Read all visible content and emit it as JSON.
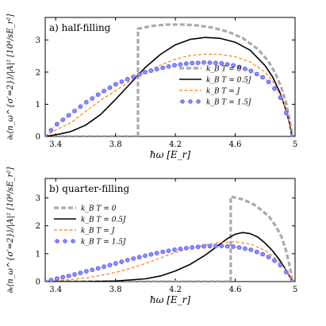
{
  "figure": {
    "ylabel": "∂ₜ⟨n_ω^{σ′=2}⟩/|A|² [10⁴/sE_r²]"
  },
  "chart_data": [
    {
      "type": "line",
      "panel_label": "a) half-filling",
      "xlabel": "ħω [E_r]",
      "ylabel": "∂ₜ⟨n_ω^{σ′=2}⟩/|A|² [10⁴/sE_r²]",
      "xlim": [
        3.33,
        5.0
      ],
      "ylim": [
        0,
        3.7
      ],
      "x_ticks": [
        "3.4",
        "3.8",
        "4.2",
        "4.6",
        "5"
      ],
      "x_tick_values": [
        3.4,
        3.8,
        4.2,
        4.6,
        5.0
      ],
      "y_ticks": [
        "0",
        "1",
        "2",
        "3"
      ],
      "y_tick_values": [
        0,
        1,
        2,
        3
      ],
      "legend_position": "lower-right",
      "series": [
        {
          "name": "k_B T = 0",
          "style": "gray-dashed",
          "color": "#aaaaaa",
          "x": [
            3.33,
            3.95,
            3.95,
            3.95,
            4.05,
            4.15,
            4.25,
            4.35,
            4.45,
            4.55,
            4.65,
            4.75,
            4.82,
            4.87,
            4.91,
            4.94,
            4.96,
            4.975,
            4.98
          ],
          "y": [
            0.0,
            0.0,
            0.0,
            3.35,
            3.44,
            3.48,
            3.48,
            3.45,
            3.38,
            3.26,
            3.06,
            2.72,
            2.35,
            1.95,
            1.5,
            1.05,
            0.6,
            0.2,
            0.0
          ]
        },
        {
          "name": "k_B T = 0.5J",
          "style": "solid",
          "color": "#000000",
          "x": [
            3.33,
            3.4,
            3.5,
            3.6,
            3.7,
            3.8,
            3.9,
            4.0,
            4.1,
            4.2,
            4.3,
            4.4,
            4.5,
            4.6,
            4.7,
            4.8,
            4.85,
            4.9,
            4.93,
            4.96,
            4.98
          ],
          "y": [
            0.0,
            0.05,
            0.15,
            0.35,
            0.68,
            1.15,
            1.65,
            2.15,
            2.55,
            2.85,
            3.02,
            3.08,
            3.05,
            2.93,
            2.68,
            2.2,
            1.85,
            1.35,
            0.95,
            0.45,
            0.0
          ]
        },
        {
          "name": "k_B T = J",
          "style": "orange-dashed",
          "color": "#ff7f0e",
          "x": [
            3.33,
            3.4,
            3.5,
            3.6,
            3.7,
            3.8,
            3.9,
            4.0,
            4.1,
            4.2,
            4.3,
            4.4,
            4.5,
            4.6,
            4.7,
            4.8,
            4.85,
            4.9,
            4.93,
            4.96,
            4.98
          ],
          "y": [
            0.0,
            0.2,
            0.42,
            0.78,
            1.12,
            1.42,
            1.73,
            2.0,
            2.22,
            2.4,
            2.52,
            2.56,
            2.55,
            2.48,
            2.32,
            2.0,
            1.72,
            1.3,
            0.95,
            0.45,
            0.0
          ]
        },
        {
          "name": "k_B T = 1.5J",
          "style": "blue-dotted-circles",
          "color": "#6a6aff",
          "x": [
            3.33,
            3.4,
            3.5,
            3.6,
            3.7,
            3.8,
            3.9,
            4.0,
            4.1,
            4.2,
            4.3,
            4.4,
            4.5,
            4.6,
            4.7,
            4.8,
            4.85,
            4.9,
            4.93,
            4.96,
            4.98
          ],
          "y": [
            0.0,
            0.35,
            0.7,
            1.05,
            1.35,
            1.62,
            1.82,
            2.0,
            2.12,
            2.22,
            2.28,
            2.3,
            2.28,
            2.2,
            2.05,
            1.8,
            1.57,
            1.22,
            0.9,
            0.43,
            0.0
          ]
        }
      ]
    },
    {
      "type": "line",
      "panel_label": "b) quarter-filling",
      "xlabel": "ħω [E_r]",
      "ylabel": "∂ₜ⟨n_ω^{σ′=2}⟩/|A|² [10⁴/sE_r²]",
      "xlim": [
        3.33,
        5.0
      ],
      "ylim": [
        0,
        3.7
      ],
      "x_ticks": [
        "3.4",
        "3.8",
        "4.2",
        "4.6",
        "5"
      ],
      "x_tick_values": [
        3.4,
        3.8,
        4.2,
        4.6,
        5.0
      ],
      "y_ticks": [
        "0",
        "1",
        "2",
        "3"
      ],
      "y_tick_values": [
        0,
        1,
        2,
        3
      ],
      "legend_position": "upper-left",
      "series": [
        {
          "name": "k_B T = 0",
          "style": "gray-dashed",
          "color": "#aaaaaa",
          "x": [
            3.33,
            4.57,
            4.57,
            4.57,
            4.65,
            4.72,
            4.78,
            4.83,
            4.87,
            4.91,
            4.94,
            4.96,
            4.975,
            4.98
          ],
          "y": [
            0.0,
            0.0,
            0.0,
            3.05,
            2.95,
            2.78,
            2.55,
            2.3,
            2.0,
            1.6,
            1.1,
            0.65,
            0.25,
            0.0
          ]
        },
        {
          "name": "k_B T = 0.5J",
          "style": "solid",
          "color": "#000000",
          "x": [
            3.33,
            3.6,
            3.8,
            4.0,
            4.1,
            4.2,
            4.3,
            4.4,
            4.5,
            4.55,
            4.6,
            4.65,
            4.7,
            4.75,
            4.8,
            4.85,
            4.9,
            4.93,
            4.96,
            4.98
          ],
          "y": [
            0.0,
            0.0,
            0.02,
            0.1,
            0.2,
            0.38,
            0.62,
            0.95,
            1.35,
            1.55,
            1.7,
            1.76,
            1.72,
            1.6,
            1.38,
            1.1,
            0.75,
            0.5,
            0.22,
            0.0
          ]
        },
        {
          "name": "k_B T = J",
          "style": "orange-dashed",
          "color": "#ff7f0e",
          "x": [
            3.33,
            3.5,
            3.6,
            3.7,
            3.8,
            3.9,
            4.0,
            4.1,
            4.2,
            4.3,
            4.4,
            4.5,
            4.6,
            4.7,
            4.8,
            4.85,
            4.9,
            4.93,
            4.96,
            4.98
          ],
          "y": [
            0.0,
            0.07,
            0.13,
            0.22,
            0.33,
            0.47,
            0.65,
            0.85,
            1.04,
            1.2,
            1.32,
            1.4,
            1.43,
            1.35,
            1.12,
            0.92,
            0.68,
            0.48,
            0.22,
            0.0
          ]
        },
        {
          "name": "k_B T = 1.5J",
          "style": "blue-dotted-circles",
          "color": "#6a6aff",
          "x": [
            3.33,
            3.4,
            3.5,
            3.6,
            3.7,
            3.8,
            3.9,
            4.0,
            4.1,
            4.2,
            4.3,
            4.4,
            4.5,
            4.6,
            4.7,
            4.8,
            4.85,
            4.9,
            4.93,
            4.96,
            4.98
          ],
          "y": [
            0.0,
            0.1,
            0.22,
            0.36,
            0.5,
            0.65,
            0.8,
            0.93,
            1.05,
            1.15,
            1.22,
            1.27,
            1.28,
            1.25,
            1.15,
            0.95,
            0.8,
            0.6,
            0.42,
            0.2,
            0.0
          ]
        }
      ]
    }
  ]
}
